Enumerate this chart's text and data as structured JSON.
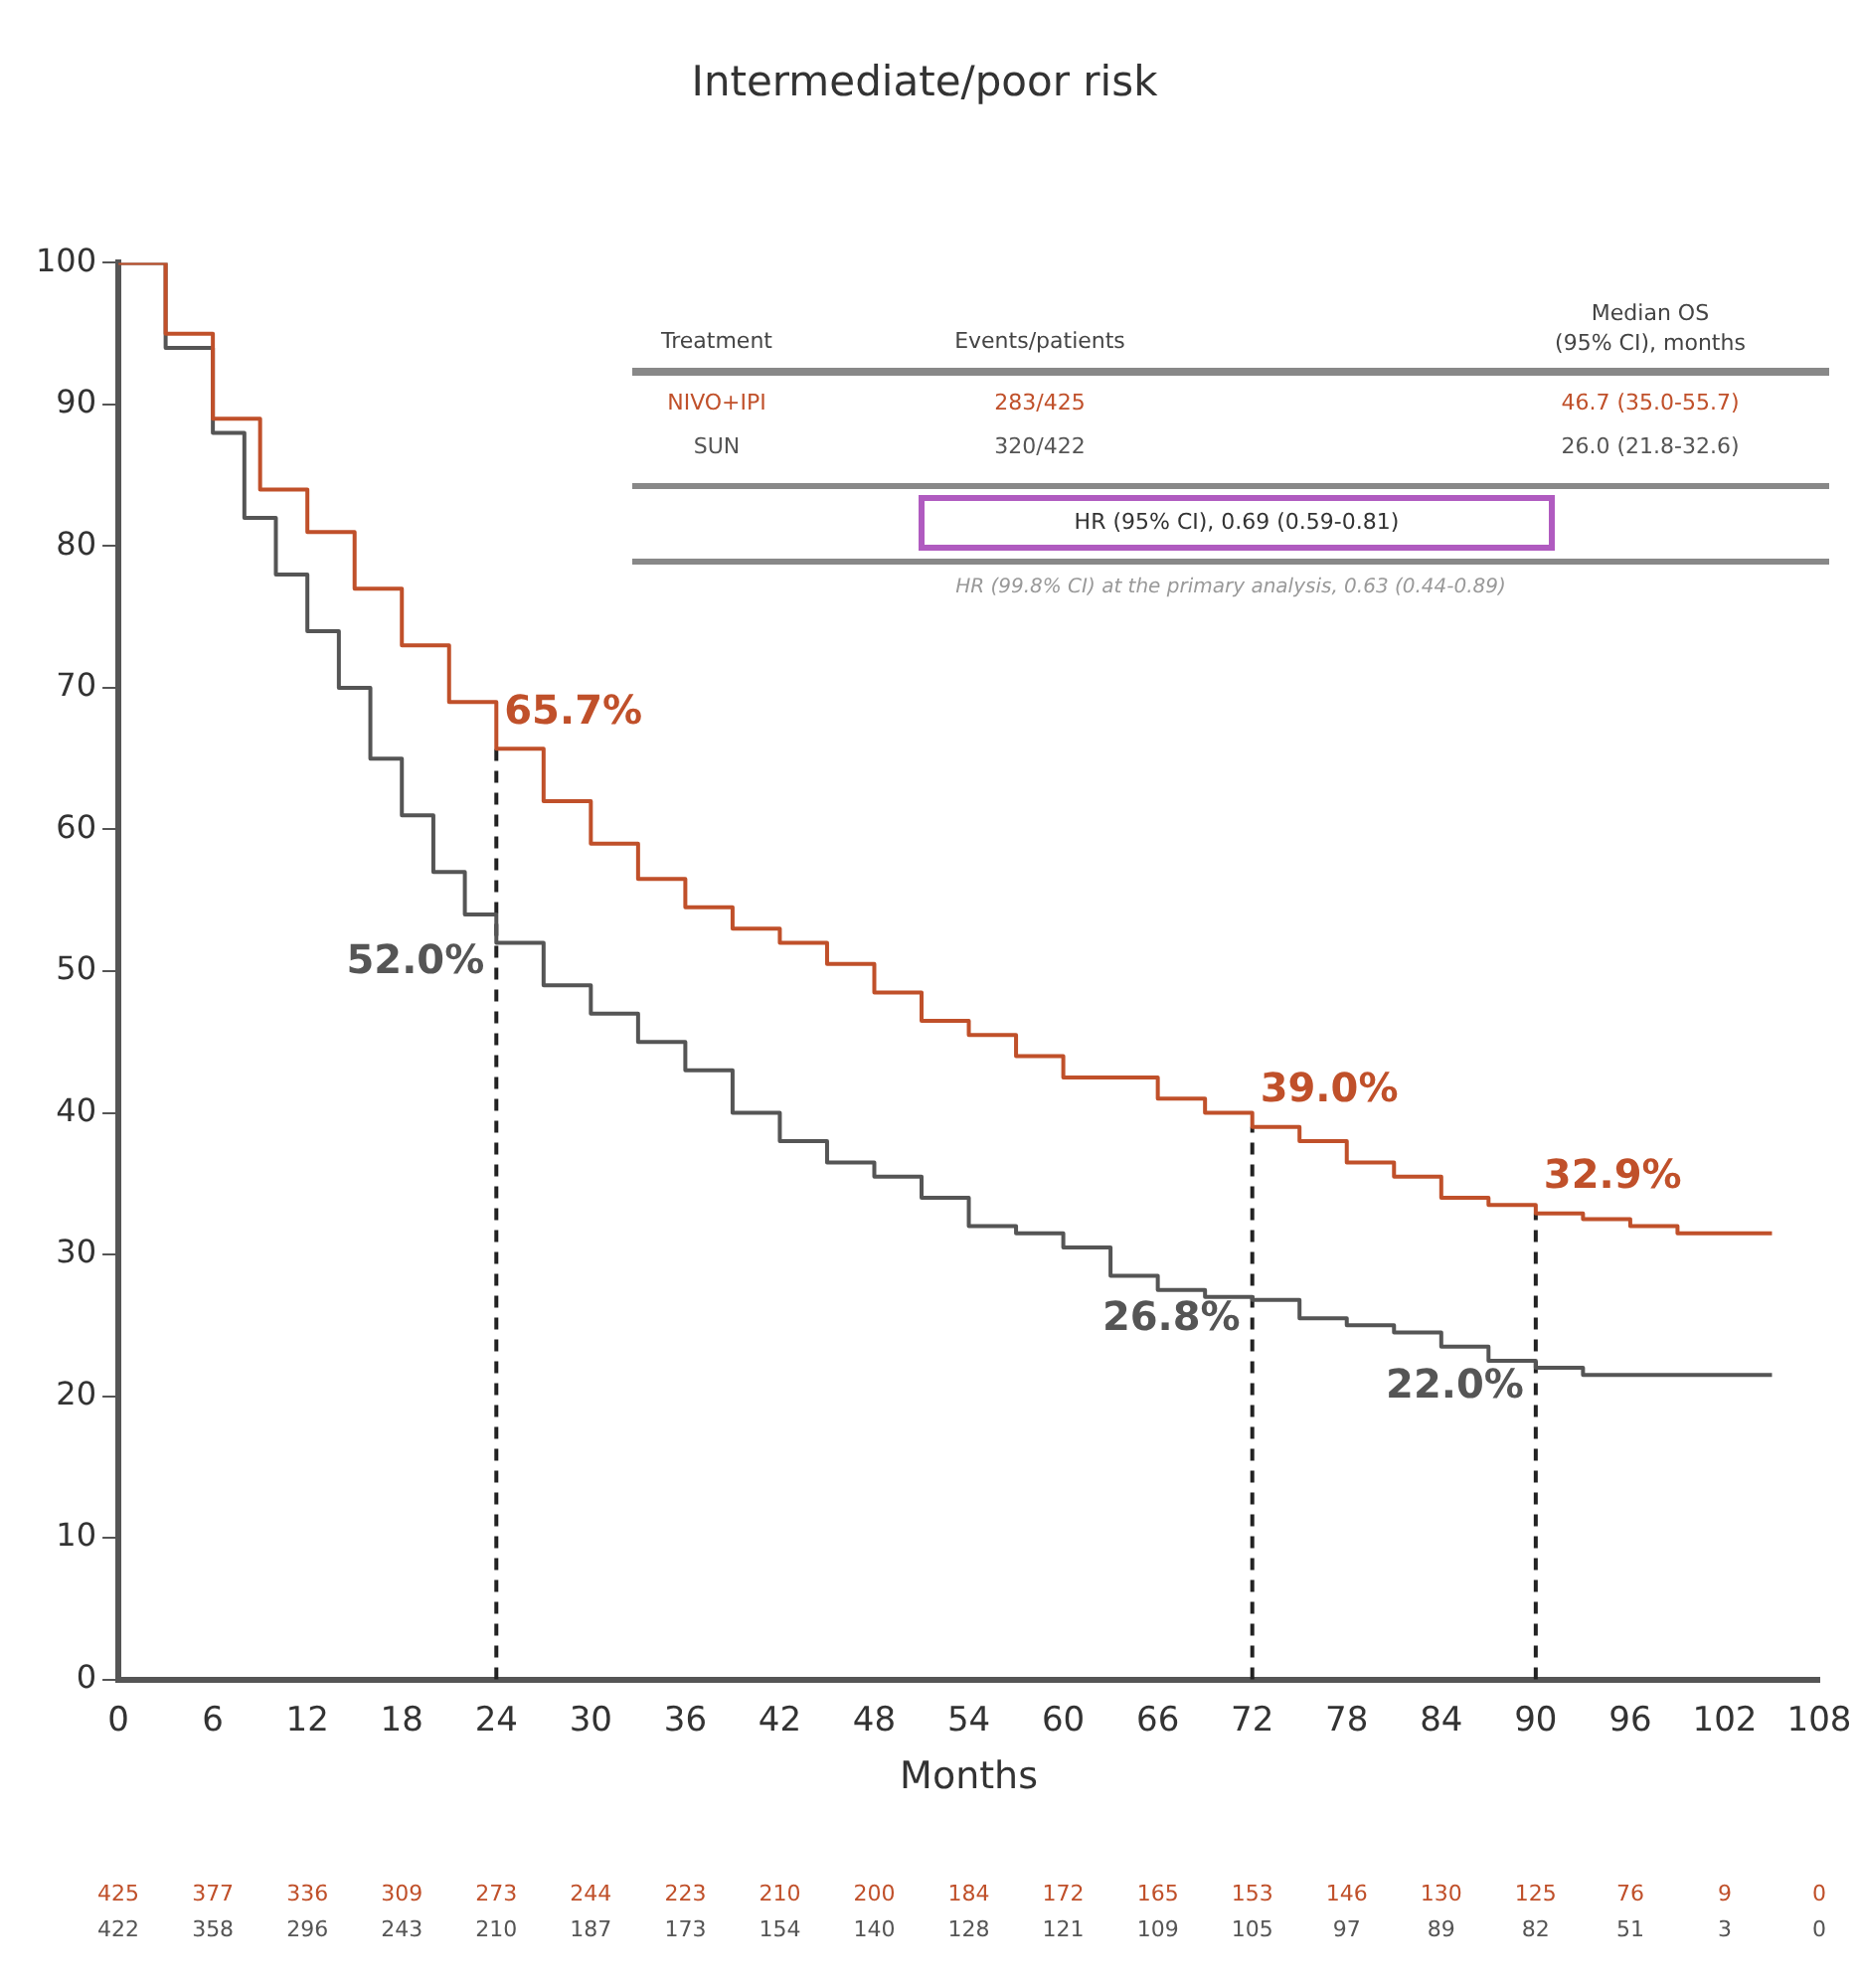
{
  "chart_data": {
    "type": "step",
    "title": "Intermediate/poor risk",
    "xlabel": "Months",
    "x": [
      0,
      3,
      6,
      9,
      12,
      15,
      18,
      21,
      24,
      27,
      30,
      33,
      36,
      39,
      42,
      45,
      48,
      51,
      54,
      57,
      60,
      63,
      66,
      69,
      72,
      75,
      78,
      81,
      84,
      87,
      90,
      93,
      96,
      99,
      102,
      105
    ],
    "series": [
      {
        "name": "NIVO+IPI",
        "color": "#c0502a",
        "values": [
          100,
          95,
          89,
          84,
          81,
          77,
          73,
          69,
          65.7,
          62,
          59,
          56.5,
          54.5,
          53,
          52,
          50.5,
          48.5,
          46.5,
          45.5,
          44,
          42.5,
          42.5,
          41,
          40,
          39,
          38,
          36.5,
          35.5,
          34,
          33.5,
          32.9,
          32.5,
          32,
          31.5,
          31.5,
          31.5
        ]
      },
      {
        "name": "SUN",
        "color": "#555555",
        "x": [
          0,
          3,
          6,
          8,
          10,
          12,
          14,
          16,
          18,
          20,
          22,
          24,
          27,
          30,
          33,
          36,
          39,
          42,
          45,
          48,
          51,
          54,
          57,
          60,
          63,
          66,
          69,
          72,
          75,
          78,
          81,
          84,
          87,
          90,
          93,
          96,
          99,
          102,
          105
        ],
        "values": [
          100,
          94,
          88,
          82,
          78,
          74,
          70,
          65,
          61,
          57,
          54,
          52.0,
          49,
          47,
          45,
          43,
          40,
          38,
          36.5,
          35.5,
          34,
          32,
          31.5,
          30.5,
          28.5,
          27.5,
          27,
          26.8,
          25.5,
          25,
          24.5,
          23.5,
          22.5,
          22.0,
          21.5,
          21.5,
          21.5,
          21.5,
          21.5
        ]
      }
    ],
    "xlim": [
      0,
      108
    ],
    "xticks": [
      0,
      6,
      12,
      18,
      24,
      30,
      36,
      42,
      48,
      54,
      60,
      66,
      72,
      78,
      84,
      90,
      96,
      102,
      108
    ],
    "ylim": [
      0,
      100
    ],
    "yticks": [
      0,
      10,
      20,
      30,
      40,
      50,
      60,
      70,
      80,
      90,
      100
    ],
    "grid": false,
    "legend": false,
    "marker": "none",
    "line_style": "solid",
    "ref_lines": [
      {
        "axis": "x",
        "value": 24,
        "line_style": "dashed",
        "color": "#222222"
      },
      {
        "axis": "x",
        "value": 72,
        "line_style": "dashed",
        "color": "#222222"
      },
      {
        "axis": "x",
        "value": 90,
        "line_style": "dashed",
        "color": "#222222"
      }
    ],
    "annotations": [
      {
        "text": "65.7%",
        "x": 24,
        "y": 65.7
      },
      {
        "text": "52.0%",
        "x": 24,
        "y": 52.0
      },
      {
        "text": "39.0%",
        "x": 72,
        "y": 39.0
      },
      {
        "text": "26.8%",
        "x": 72,
        "y": 26.8
      },
      {
        "text": "32.9%",
        "x": 90,
        "y": 32.9
      },
      {
        "text": "22.0%",
        "x": 90,
        "y": 22.0
      },
      "Treatment",
      "Events/patients",
      "Median OS (95% CI), months",
      "283/425",
      "46.7 (35.0-55.7)",
      "320/422",
      "26.0 (21.8-32.6)",
      "HR (95% CI), 0.69 (0.59-0.81)",
      "HR (99.8% CI) at the primary analysis, 0.63 (0.44-0.89)",
      "425 377 336 309 273 244 223 210 200 184 172 165 153 146 130 125 76 9 0",
      "422 358 296 243 210 187 173 154 140 128 121 109 105 97 89 82 51 3 0"
    ]
  }
}
